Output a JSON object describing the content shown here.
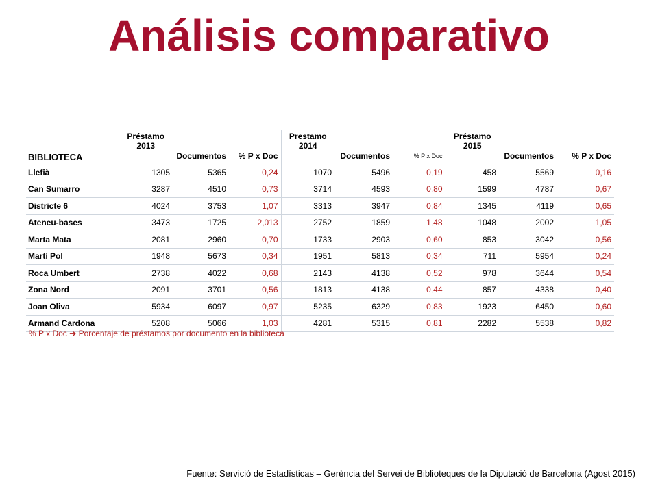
{
  "title": "Análisis comparativo",
  "table": {
    "headers": {
      "biblioteca": "BIBLIOTECA",
      "loan2013": [
        "Préstamo",
        "2013"
      ],
      "docs": "Documentos",
      "pct": "% P x Doc",
      "loan2014": [
        "Prestamo",
        "2014"
      ],
      "loan2015": [
        "Préstamo",
        "2015"
      ]
    },
    "rows": [
      [
        "Llefià",
        "1305",
        "5365",
        "0,24",
        "1070",
        "5496",
        "0,19",
        "458",
        "5569",
        "0,16"
      ],
      [
        "Can Sumarro",
        "3287",
        "4510",
        "0,73",
        "3714",
        "4593",
        "0,80",
        "1599",
        "4787",
        "0,67"
      ],
      [
        "Districte 6",
        "4024",
        "3753",
        "1,07",
        "3313",
        "3947",
        "0,84",
        "1345",
        "4119",
        "0,65"
      ],
      [
        "Ateneu-bases",
        "3473",
        "1725",
        "2,013",
        "2752",
        "1859",
        "1,48",
        "1048",
        "2002",
        "1,05"
      ],
      [
        "Marta Mata",
        "2081",
        "2960",
        "0,70",
        "1733",
        "2903",
        "0,60",
        "853",
        "3042",
        "0,56"
      ],
      [
        "Martí Pol",
        "1948",
        "5673",
        "0,34",
        "1951",
        "5813",
        "0,34",
        "711",
        "5954",
        "0,24"
      ],
      [
        "Roca Umbert",
        "2738",
        "4022",
        "0,68",
        "2143",
        "4138",
        "0,52",
        "978",
        "3644",
        "0,54"
      ],
      [
        "Zona Nord",
        "2091",
        "3701",
        "0,56",
        "1813",
        "4138",
        "0,44",
        "857",
        "4338",
        "0,40"
      ],
      [
        "Joan Oliva",
        "5934",
        "6097",
        "0,97",
        "5235",
        "6329",
        "0,83",
        "1923",
        "6450",
        "0,60"
      ],
      [
        "Armand Cardona",
        "5208",
        "5066",
        "1,03",
        "4281",
        "5315",
        "0,81",
        "2282",
        "5538",
        "0,82"
      ]
    ]
  },
  "footnote": {
    "left": "% P x Doc",
    "arrow": "➔",
    "right": "Porcentaje de préstamos por documento en la biblioteca"
  },
  "source": "Fuente: Servició de Estadísticas – Gerència del Servei de Biblioteques de la Diputació de Barcelona (Agost 2015)",
  "colors": {
    "title": "#a5102e",
    "accent": "#b21f1f"
  }
}
